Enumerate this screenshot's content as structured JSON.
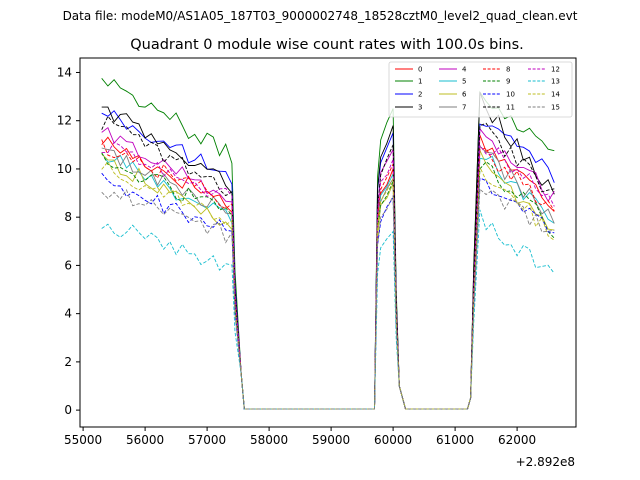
{
  "chart_data": {
    "type": "line",
    "suptitle": "Data file: modeM0/AS1A05_187T03_9000002748_18528cztM0_level2_quad_clean.evt",
    "title": "Quadrant 0 module wise count rates with 100.0s bins.",
    "xlabel": "",
    "ylabel": "",
    "x_offset_label": "+2.892e8",
    "xlim": [
      54950,
      62950
    ],
    "ylim": [
      -0.7,
      14.6
    ],
    "x_ticks": [
      55000,
      56000,
      57000,
      58000,
      59000,
      60000,
      61000,
      62000
    ],
    "x_tick_labels": [
      "55000",
      "56000",
      "57000",
      "58000",
      "59000",
      "60000",
      "61000",
      "62000"
    ],
    "y_ticks": [
      0,
      2,
      4,
      6,
      8,
      10,
      12,
      14
    ],
    "y_tick_labels": [
      "0",
      "2",
      "4",
      "6",
      "8",
      "10",
      "12",
      "14"
    ],
    "legend_position": "top-right",
    "legend_columns": 4,
    "series": [
      {
        "name": "0",
        "color": "#ff0000",
        "dash": "solid",
        "seg1_start": 11.2,
        "seg1_end": 8.5,
        "seg2_peak": 10.0,
        "seg3_start": 11.2,
        "seg3_end": 8.5
      },
      {
        "name": "1",
        "color": "#008000",
        "dash": "solid",
        "seg1_start": 13.9,
        "seg1_end": 10.5,
        "seg2_peak": 12.5,
        "seg3_start": 13.2,
        "seg3_end": 10.7
      },
      {
        "name": "2",
        "color": "#0000ff",
        "dash": "solid",
        "seg1_start": 12.4,
        "seg1_end": 9.6,
        "seg2_peak": 11.5,
        "seg3_start": 12.1,
        "seg3_end": 9.8
      },
      {
        "name": "3",
        "color": "#000000",
        "dash": "solid",
        "seg1_start": 12.6,
        "seg1_end": 9.2,
        "seg2_peak": 11.8,
        "seg3_start": 12.9,
        "seg3_end": 9.0
      },
      {
        "name": "4",
        "color": "#bf00bf",
        "dash": "solid",
        "seg1_start": 11.5,
        "seg1_end": 8.8,
        "seg2_peak": 10.8,
        "seg3_start": 11.6,
        "seg3_end": 8.8
      },
      {
        "name": "5",
        "color": "#17becf",
        "dash": "solid",
        "seg1_start": 10.6,
        "seg1_end": 7.9,
        "seg2_peak": 9.8,
        "seg3_start": 10.6,
        "seg3_end": 7.9
      },
      {
        "name": "6",
        "color": "#bcbd22",
        "dash": "solid",
        "seg1_start": 10.5,
        "seg1_end": 7.6,
        "seg2_peak": 9.4,
        "seg3_start": 10.4,
        "seg3_end": 7.3
      },
      {
        "name": "7",
        "color": "#7f7f7f",
        "dash": "solid",
        "seg1_start": 10.7,
        "seg1_end": 8.2,
        "seg2_peak": 9.6,
        "seg3_start": 10.8,
        "seg3_end": 8.0
      },
      {
        "name": "8",
        "color": "#ff0000",
        "dash": "dashed",
        "seg1_start": 11.0,
        "seg1_end": 8.6,
        "seg2_peak": 10.2,
        "seg3_start": 10.9,
        "seg3_end": 8.2
      },
      {
        "name": "9",
        "color": "#008000",
        "dash": "dashed",
        "seg1_start": 10.4,
        "seg1_end": 8.1,
        "seg2_peak": 9.5,
        "seg3_start": 10.3,
        "seg3_end": 7.5
      },
      {
        "name": "10",
        "color": "#0000ff",
        "dash": "dashed",
        "seg1_start": 9.5,
        "seg1_end": 7.4,
        "seg2_peak": 8.8,
        "seg3_start": 9.4,
        "seg3_end": 7.4
      },
      {
        "name": "11",
        "color": "#000000",
        "dash": "dashed",
        "seg1_start": 12.0,
        "seg1_end": 9.0,
        "seg2_peak": 11.0,
        "seg3_start": 11.8,
        "seg3_end": 8.9
      },
      {
        "name": "12",
        "color": "#bf00bf",
        "dash": "dashed",
        "seg1_start": 11.0,
        "seg1_end": 8.8,
        "seg2_peak": 10.4,
        "seg3_start": 11.2,
        "seg3_end": 8.6
      },
      {
        "name": "13",
        "color": "#17becf",
        "dash": "dashed",
        "seg1_start": 7.8,
        "seg1_end": 5.9,
        "seg2_peak": 7.4,
        "seg3_start": 8.0,
        "seg3_end": 5.5
      },
      {
        "name": "14",
        "color": "#bcbd22",
        "dash": "dashed",
        "seg1_start": 10.2,
        "seg1_end": 7.7,
        "seg2_peak": 9.6,
        "seg3_start": 10.0,
        "seg3_end": 7.3
      },
      {
        "name": "15",
        "color": "#7f7f7f",
        "dash": "dashed",
        "seg1_start": 9.2,
        "seg1_end": 7.2,
        "seg2_peak": 8.9,
        "seg3_start": 9.3,
        "seg3_end": 7.4
      }
    ],
    "time_segments": {
      "seg1_range": [
        55300,
        57400
      ],
      "seg1_drop_end": 57600,
      "zero1_range": [
        57600,
        59700
      ],
      "seg2_rise_start": 59700,
      "seg2_plateau_range": [
        59800,
        60000
      ],
      "seg2_drop_end": 60200,
      "zero2_range": [
        60200,
        61200
      ],
      "seg3_rise_start": 61200,
      "seg3_range": [
        61400,
        62600
      ],
      "bin_width": 100
    }
  }
}
